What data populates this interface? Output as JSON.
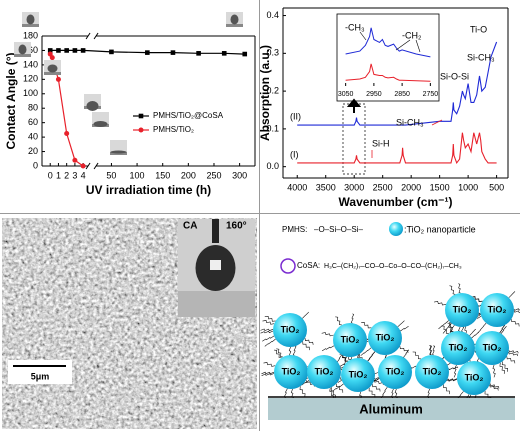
{
  "chart_data": [
    {
      "type": "line",
      "x_label": "UV irradiation time (h)",
      "y_label": "Contact Angle (°)",
      "xlim": [
        -1,
        330
      ],
      "xbreak": [
        4.6,
        20
      ],
      "xticks": [
        0,
        1,
        2,
        3,
        4,
        50,
        100,
        150,
        200,
        250,
        300
      ],
      "ylim": [
        0,
        180
      ],
      "yticks": [
        0,
        20,
        40,
        60,
        80,
        100,
        120,
        140,
        160,
        180
      ],
      "grid": false,
      "legend": "right",
      "series": [
        {
          "name": "PMHS/TiO₂@CoSA",
          "color": "#000000",
          "marker": "square",
          "x": [
            0,
            1,
            2,
            3,
            4,
            50,
            120,
            170,
            220,
            270,
            310
          ],
          "values": [
            160,
            160,
            160,
            160,
            160,
            158,
            157,
            157,
            156,
            156,
            155
          ]
        },
        {
          "name": "PMHS/TiO₂",
          "color": "#e8212b",
          "marker": "circle",
          "x": [
            0,
            0.25,
            0.5,
            1,
            2,
            3,
            4
          ],
          "values": [
            155,
            150,
            138,
            120,
            45,
            8,
            0
          ]
        }
      ]
    },
    {
      "type": "line",
      "x_label": "Wavenumber (cm⁻¹)",
      "y_label": "Absorption (a.u.)",
      "xlim": [
        4250,
        300
      ],
      "xticks": [
        4000,
        3500,
        3000,
        2500,
        2000,
        1500,
        1000,
        500
      ],
      "ylim": [
        -0.03,
        0.42
      ],
      "yticks": [
        {
          "value": 0,
          "label": "0.0"
        },
        0.1,
        0.2,
        0.3,
        0.4
      ],
      "grid": false,
      "x": [
        4000,
        3500,
        3000,
        2970,
        2960,
        2950,
        2900,
        2500,
        2200,
        2160,
        2150,
        2140,
        2100,
        1500,
        1300,
        1270,
        1260,
        1250,
        1200,
        1150,
        1100,
        1080,
        1050,
        1000,
        950,
        900,
        850,
        800,
        780,
        760,
        700,
        650,
        600,
        500
      ],
      "series": [
        {
          "name": "(I)",
          "color": "#e8212b",
          "values": [
            0.01,
            0.01,
            0.01,
            0.02,
            0.03,
            0.02,
            0.01,
            0.01,
            0.01,
            0.03,
            0.05,
            0.03,
            0.01,
            0.01,
            0.01,
            0.03,
            0.06,
            0.03,
            0.01,
            0.02,
            0.09,
            0.07,
            0.05,
            0.06,
            0.04,
            0.09,
            0.06,
            0.09,
            0.07,
            0.04,
            0.02,
            0.01,
            0.01,
            0.01
          ]
        },
        {
          "name": "(II)",
          "color": "#1f2ad6",
          "values": [
            0.11,
            0.11,
            0.11,
            0.12,
            0.13,
            0.12,
            0.11,
            0.11,
            0.11,
            0.11,
            0.11,
            0.11,
            0.11,
            0.12,
            0.12,
            0.15,
            0.17,
            0.15,
            0.14,
            0.16,
            0.2,
            0.19,
            0.18,
            0.22,
            0.17,
            0.17,
            0.19,
            0.24,
            0.22,
            0.2,
            0.21,
            0.25,
            0.29,
            0.33
          ]
        }
      ],
      "annotations": [
        "Ti-O",
        "Si-CH₃",
        "Si-O-Si",
        "Si-CH₃",
        "Si-H"
      ]
    },
    {
      "type": "line",
      "xlim": [
        3070,
        2730
      ],
      "xticks": [
        3050,
        2950,
        2850,
        2750
      ],
      "ylim": [
        0,
        1.1
      ],
      "x": [
        3050,
        3000,
        2980,
        2965,
        2960,
        2950,
        2930,
        2920,
        2910,
        2900,
        2880,
        2870,
        2860,
        2850,
        2800,
        2750
      ],
      "series": [
        {
          "color": "#1f2ad6",
          "values": [
            0.55,
            0.6,
            0.7,
            0.85,
            1.0,
            0.8,
            0.75,
            0.8,
            0.7,
            0.68,
            0.72,
            0.65,
            0.6,
            0.62,
            0.55,
            0.5
          ]
        },
        {
          "color": "#e8212b",
          "values": [
            0.1,
            0.12,
            0.15,
            0.25,
            0.38,
            0.2,
            0.18,
            0.18,
            0.15,
            0.14,
            0.15,
            0.12,
            0.1,
            0.1,
            0.09,
            0.08
          ]
        }
      ],
      "annotations": [
        "-CH₃",
        "-CH₂"
      ]
    }
  ],
  "sem_image": {
    "label": "CA",
    "angle": "160°",
    "scale_bar": "5μm"
  },
  "diagram": {
    "pmhs_label": "PMHS:",
    "pmhs_formula": "–O–Si–O–Si–",
    "tio2_label": ":TiO₂ nanoparticle",
    "cosa_label": "CoSA:",
    "cosa_formula": "H₃C–(CH₂)₇–CO–O–Co–O–CO–(CH₂)₇–CH₃",
    "particles": [
      "TiO₂",
      "TiO₂",
      "TiO₂",
      "TiO₂",
      "TiO₂",
      "TiO₂",
      "TiO₂",
      "TiO₂",
      "TiO₂",
      "TiO₂",
      "TiO₂",
      "TiO₂",
      "TiO₂"
    ],
    "substrate": "Aluminum"
  }
}
